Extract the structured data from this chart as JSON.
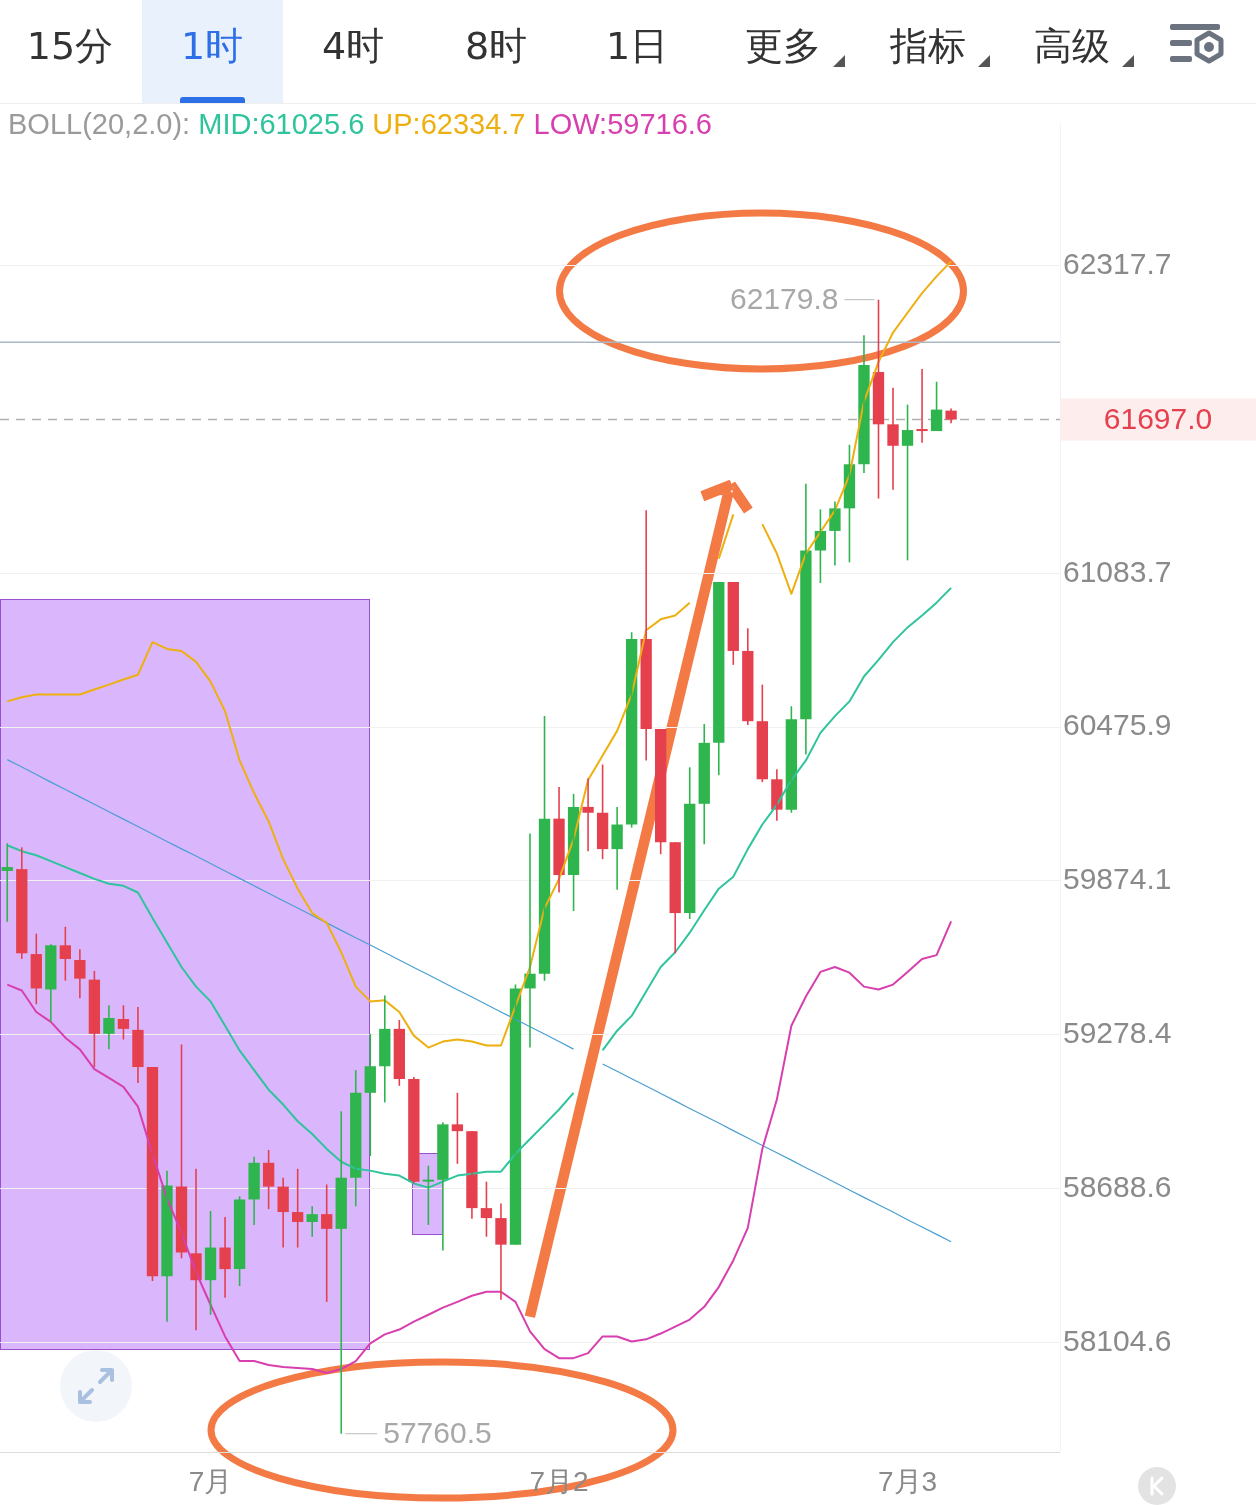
{
  "chart_data": {
    "type": "candlestick",
    "log": true,
    "grid": "y",
    "legend": "top",
    "legend_title": "BOLL(20,2.0):",
    "categories": [
      null,
      null,
      null,
      null,
      null,
      null,
      null,
      null,
      null,
      null,
      null,
      null,
      null,
      null,
      "7月",
      null,
      null,
      null,
      null,
      null,
      null,
      null,
      null,
      null,
      null,
      null,
      null,
      null,
      null,
      null,
      null,
      null,
      null,
      null,
      null,
      null,
      null,
      null,
      "7月2",
      null,
      null,
      null,
      null,
      null,
      null,
      null,
      null,
      null,
      null,
      null,
      null,
      null,
      null,
      null,
      null,
      null,
      null,
      null,
      null,
      null,
      null,
      null,
      "7月3",
      null,
      null,
      null
    ],
    "ohlc": [
      [
        59913,
        60021,
        59715,
        59928
      ],
      [
        59920,
        60005,
        59571,
        59593
      ],
      [
        59590,
        59669,
        59396,
        59457
      ],
      [
        59453,
        59628,
        59328,
        59624
      ],
      [
        59624,
        59696,
        59487,
        59571
      ],
      [
        59567,
        59609,
        59419,
        59495
      ],
      [
        59491,
        59525,
        59154,
        59282
      ],
      [
        59282,
        59392,
        59222,
        59343
      ],
      [
        59339,
        59392,
        59260,
        59301
      ],
      [
        59297,
        59385,
        59093,
        59154
      ],
      [
        59154,
        59154,
        58337,
        58355
      ],
      [
        58355,
        58757,
        58183,
        58700
      ],
      [
        58696,
        59241,
        58423,
        58445
      ],
      [
        58442,
        58764,
        58150,
        58340
      ],
      [
        58340,
        58603,
        58209,
        58464
      ],
      [
        58464,
        58580,
        58273,
        58382
      ],
      [
        58382,
        58659,
        58318,
        58647
      ],
      [
        58647,
        58810,
        58550,
        58787
      ],
      [
        58787,
        58836,
        58610,
        58696
      ],
      [
        58696,
        58730,
        58464,
        58599
      ],
      [
        58599,
        58764,
        58464,
        58561
      ],
      [
        58561,
        58621,
        58505,
        58591
      ],
      [
        58591,
        58704,
        58258,
        58535
      ],
      [
        58535,
        58984,
        57760.5,
        58730
      ],
      [
        58730,
        59142,
        58621,
        59055
      ],
      [
        59055,
        59282,
        58813,
        59157
      ],
      [
        59157,
        59430,
        59018,
        59301
      ],
      [
        59301,
        59335,
        59082,
        59108
      ],
      [
        59108,
        59116,
        58708,
        58715
      ],
      [
        58715,
        58776,
        58550,
        58722
      ],
      [
        58722,
        58942,
        58453,
        58934
      ],
      [
        58934,
        59055,
        58783,
        58908
      ],
      [
        58908,
        58908,
        58573,
        58614
      ],
      [
        58614,
        58715,
        58505,
        58576
      ],
      [
        58576,
        58632,
        58266,
        58475
      ],
      [
        58475,
        59472,
        58475,
        59457
      ],
      [
        59457,
        60059,
        59229,
        59514
      ],
      [
        59514,
        60519,
        59487,
        60117
      ],
      [
        60117,
        60241,
        59829,
        59897
      ],
      [
        59897,
        60214,
        59757,
        60163
      ],
      [
        60163,
        60275,
        59990,
        60140
      ],
      [
        60140,
        60329,
        59959,
        59998
      ],
      [
        59998,
        60163,
        59840,
        60094
      ],
      [
        60094,
        60850,
        60082,
        60823
      ],
      [
        60823,
        61334,
        60345,
        60468
      ],
      [
        60468,
        60468,
        59978,
        60025
      ],
      [
        60025,
        60025,
        59593,
        59749
      ],
      [
        59749,
        60318,
        59726,
        60175
      ],
      [
        60175,
        60488,
        60017,
        60414
      ],
      [
        60414,
        61049,
        60287,
        61049
      ],
      [
        61049,
        61049,
        60721,
        60776
      ],
      [
        60776,
        60866,
        60484,
        60499
      ],
      [
        60499,
        60643,
        60260,
        60271
      ],
      [
        60271,
        60310,
        60109,
        60152
      ],
      [
        60152,
        60558,
        60140,
        60507
      ],
      [
        60507,
        61440,
        60368,
        61174
      ],
      [
        61174,
        61338,
        61045,
        61252
      ],
      [
        61252,
        61369,
        61115,
        61342
      ],
      [
        61342,
        61596,
        61127,
        61518
      ],
      [
        61518,
        62036,
        61483,
        61916
      ],
      [
        61888,
        62179.8,
        61381,
        61678
      ],
      [
        61678,
        61825,
        61416,
        61592
      ],
      [
        61592,
        61757,
        61135,
        61655
      ],
      [
        61659,
        61900,
        61604,
        61651
      ],
      [
        61651,
        61849,
        61651,
        61737
      ],
      [
        61733,
        61741,
        61682,
        61697.0
      ]
    ],
    "series": [
      {
        "name": "MID:61025.6",
        "type": "line",
        "color": "#2fc49c",
        "values": [
          60013,
          59990,
          59974,
          59951,
          59928,
          59905,
          59882,
          59863,
          59855,
          59829,
          59730,
          59635,
          59540,
          59464,
          59407,
          59313,
          59218,
          59142,
          59067,
          59010,
          58946,
          58897,
          58840,
          58791,
          58764,
          58757,
          58745,
          58738,
          58708,
          58692,
          58715,
          58738,
          58745,
          58753,
          58753,
          58821,
          58878,
          58934,
          58991,
          59055,
          null,
          59218,
          59294,
          59351,
          59445,
          59540,
          59597,
          59673,
          59760,
          59844,
          59890,
          59998,
          60094,
          60171,
          60268,
          60345,
          60453,
          60519,
          60577,
          60675,
          60741,
          60811,
          60869,
          60916,
          60967,
          61025.6
        ]
      },
      {
        "name": "UP:62334.7",
        "type": "line",
        "color": "#eeb010",
        "values": [
          60577,
          60593,
          60604,
          60604,
          60604,
          60604,
          60624,
          60643,
          60663,
          60682,
          60811,
          60784,
          60776,
          60733,
          60655,
          60538,
          60345,
          60217,
          60106,
          59959,
          59844,
          59749,
          59711,
          59597,
          59464,
          59407,
          59411,
          59366,
          59275,
          59229,
          59252,
          59260,
          59252,
          59237,
          59237,
          59389,
          59540,
          59768,
          59882,
          60036,
          60268,
          60364,
          60461,
          60604,
          60858,
          60901,
          60916,
          60967,
          null,
          61142,
          61318,
          null,
          61279,
          61162,
          61002,
          61162,
          61248,
          61334,
          61475,
          61769,
          61928,
          62047,
          62127,
          62206,
          62274,
          62334.7
        ]
      },
      {
        "name": "LOW:59716.6",
        "type": "line",
        "color": "#d83fae",
        "values": [
          59472,
          59449,
          59366,
          59328,
          59267,
          59222,
          59146,
          59112,
          59078,
          59002,
          58821,
          58651,
          58520,
          58370,
          58247,
          58127,
          58034,
          58034,
          58019,
          58012,
          58008,
          58004,
          57989,
          58004,
          58034,
          58101,
          58135,
          58153,
          58183,
          58209,
          58236,
          58258,
          58281,
          58296,
          58296,
          58258,
          58146,
          58079,
          58045,
          58045,
          58064,
          58127,
          58127,
          58108,
          58116,
          58138,
          58164,
          58191,
          58239,
          58314,
          58415,
          58539,
          58840,
          59029,
          59313,
          59426,
          59521,
          59540,
          59518,
          59464,
          59453,
          59472,
          59521,
          59571,
          59586,
          59716.6
        ]
      },
      {
        "type": "line",
        "color": "#4a9fd2",
        "values": [
          60348,
          60319,
          60290,
          60260,
          60231,
          60202,
          60173,
          60144,
          60115,
          60086,
          60057,
          60028,
          59999,
          59971,
          59942,
          59913,
          59884,
          59855,
          59826,
          59797,
          59769,
          59740,
          59711,
          59682,
          59653,
          59625,
          59596,
          59567,
          59538,
          59510,
          59481,
          59452,
          59424,
          59395,
          59366,
          59338,
          59309,
          59281,
          59252,
          59223,
          null,
          59166,
          59138,
          59109,
          59081,
          59052,
          59024,
          58995,
          58967,
          58939,
          58910,
          58882,
          58853,
          58825,
          58797,
          58768,
          58740,
          58712,
          58683,
          58655,
          58627,
          58599,
          58570,
          58542,
          58514,
          58486
        ]
      }
    ],
    "ylim": [
      57692,
      62894
    ],
    "yticks": [
      58104.6,
      58688.6,
      59278.4,
      59874.1,
      60475.9,
      61083.7,
      62317.7
    ],
    "ref_lines": [
      {
        "axis": "y",
        "value": 61697.0,
        "label": "61697.0",
        "color": "#b0b0b0",
        "line_style": "dashed"
      },
      {
        "axis": "y",
        "value": 62008,
        "color": "#aab8c6",
        "line_style": "solid"
      }
    ],
    "annotations": [
      "15分",
      "1时",
      "4时",
      "8时",
      "1日",
      "更多",
      "指标",
      "高级",
      "62179.8",
      "57760.5"
    ]
  }
}
